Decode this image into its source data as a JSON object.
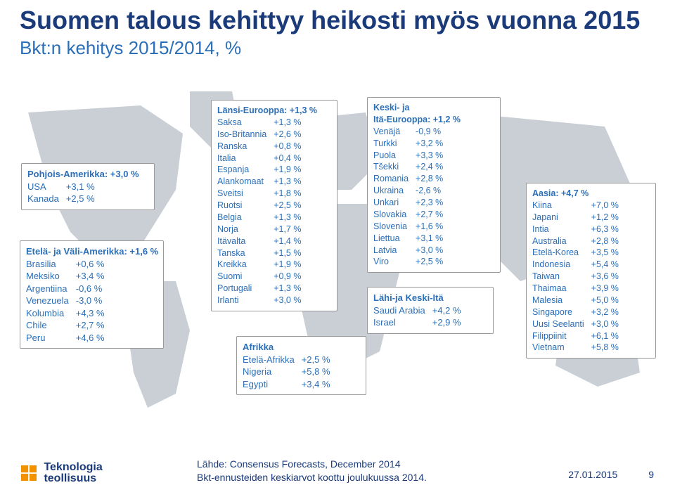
{
  "colors": {
    "title": "#1a3a7a",
    "subtitle": "#2b6fb8",
    "box_text": "#2b6fb8",
    "box_border": "#999999",
    "box_bg": "#ffffff",
    "map_fill": "#c9cfd4",
    "logo_orange": "#f29200"
  },
  "title": "Suomen talous kehittyy heikosti myös vuonna 2015",
  "subtitle": "Bkt:n kehitys 2015/2014, %",
  "regions": {
    "namer": {
      "header": "Pohjois-Amerikka: +3,0 %",
      "rows": [
        [
          "USA",
          "+3,1 %"
        ],
        [
          "Kanada",
          "+2,5 %"
        ]
      ]
    },
    "samer": {
      "header": "Etelä- ja Väli-Amerikka: +1,6 %",
      "rows": [
        [
          "Brasilia",
          "+0,6 %"
        ],
        [
          "Meksiko",
          "+3,4 %"
        ],
        [
          "Argentiina",
          "-0,6 %"
        ],
        [
          "Venezuela",
          "-3,0 %"
        ],
        [
          "Kolumbia",
          "+4,3 %"
        ],
        [
          "Chile",
          "+2,7 %"
        ],
        [
          "Peru",
          "+4,6 %"
        ]
      ]
    },
    "weur": {
      "header": "Länsi-Eurooppa: +1,3 %",
      "rows": [
        [
          "Saksa",
          "+1,3 %"
        ],
        [
          "Iso-Britannia",
          "+2,6 %"
        ],
        [
          "Ranska",
          "+0,8 %"
        ],
        [
          "Italia",
          "+0,4 %"
        ],
        [
          "Espanja",
          "+1,9 %"
        ],
        [
          "Alankomaat",
          "+1,3 %"
        ],
        [
          "Sveitsi",
          "+1,8 %"
        ],
        [
          "Ruotsi",
          "+2,5 %"
        ],
        [
          "Belgia",
          "+1,3 %"
        ],
        [
          "Norja",
          "+1,7 %"
        ],
        [
          "Itävalta",
          "+1,4 %"
        ],
        [
          "Tanska",
          "+1,5 %"
        ],
        [
          "Kreikka",
          "+1,9 %"
        ],
        [
          "Suomi",
          "+0,9 %"
        ],
        [
          "Portugali",
          "+1,3 %"
        ],
        [
          "Irlanti",
          "+3,0 %"
        ]
      ]
    },
    "afr": {
      "header": "Afrikka",
      "rows": [
        [
          "Etelä-Afrikka",
          "+2,5 %"
        ],
        [
          "Nigeria",
          "+5,8 %"
        ],
        [
          "Egypti",
          "+3,4 %"
        ]
      ]
    },
    "ceeur": {
      "header_line1": "Keski- ja",
      "header_line2": "Itä-Eurooppa: +1,2 %",
      "rows": [
        [
          "Venäjä",
          "-0,9 %"
        ],
        [
          "Turkki",
          "+3,2 %"
        ],
        [
          "Puola",
          "+3,3 %"
        ],
        [
          "Tšekki",
          "+2,4 %"
        ],
        [
          "Romania",
          "+2,8 %"
        ],
        [
          "Ukraina",
          "-2,6 %"
        ],
        [
          "Unkari",
          "+2,3 %"
        ],
        [
          "Slovakia",
          "+2,7 %"
        ],
        [
          "Slovenia",
          "+1,6 %"
        ],
        [
          "Liettua",
          "+3,1 %"
        ],
        [
          "Latvia",
          "+3,0 %"
        ],
        [
          "Viro",
          "+2,5 %"
        ]
      ]
    },
    "me": {
      "header": "Lähi-ja Keski-Itä",
      "rows": [
        [
          "Saudi Arabia",
          "+4,2 %"
        ],
        [
          "Israel",
          "+2,9 %"
        ]
      ]
    },
    "asia": {
      "header": "Aasia: +4,7 %",
      "rows": [
        [
          "Kiina",
          "+7,0 %"
        ],
        [
          "Japani",
          "+1,2 %"
        ],
        [
          "Intia",
          "+6,3 %"
        ],
        [
          "Australia",
          "+2,8 %"
        ],
        [
          "Etelä-Korea",
          "+3,5 %"
        ],
        [
          "Indonesia",
          "+5,4 %"
        ],
        [
          "Taiwan",
          "+3,6 %"
        ],
        [
          "Thaimaa",
          "+3,9 %"
        ],
        [
          "Malesia",
          "+5,0 %"
        ],
        [
          "Singapore",
          "+3,2 %"
        ],
        [
          "Uusi Seelanti",
          "+3,0 %"
        ],
        [
          "Filippiinit",
          "+6,1 %"
        ],
        [
          "Vietnam",
          "+5,8 %"
        ]
      ]
    }
  },
  "footer": {
    "logo_line1": "Teknologia",
    "logo_line2": "teollisuus",
    "source_line1": "Lähde: Consensus Forecasts, December 2014",
    "source_line2": "Bkt-ennusteiden keskiarvot koottu joulukuussa 2014.",
    "date": "27.01.2015",
    "page": "9"
  }
}
